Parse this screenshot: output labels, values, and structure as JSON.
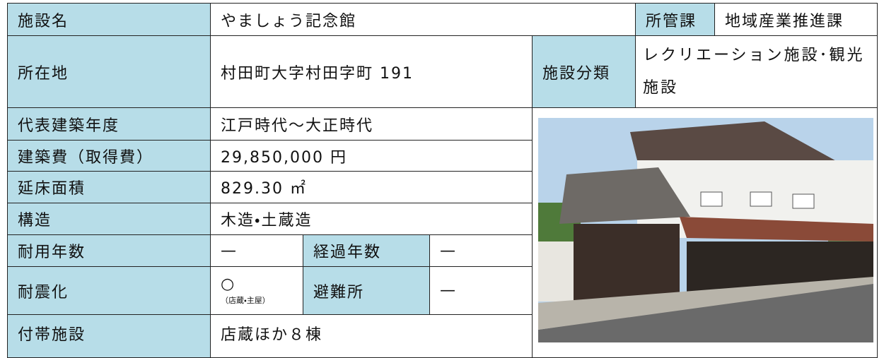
{
  "facility": {
    "name": {
      "label": "施設名",
      "value": "やましょう記念館"
    },
    "department": {
      "label": "所管課",
      "value": "地域産業推進課"
    },
    "location": {
      "label": "所在地",
      "value": "村田町大字村田字町 191"
    },
    "category": {
      "label": "施設分類",
      "value": "レクリエーション施設･観光施設"
    },
    "built_era": {
      "label": "代表建築年度",
      "value": "江戸時代～大正時代"
    },
    "construction_cost": {
      "label": "建築費（取得費）",
      "value": "29,850,000 円"
    },
    "floor_area": {
      "label": "延床面積",
      "value": "829.30 ㎡"
    },
    "structure": {
      "label": "構造",
      "value": "木造・土蔵造"
    },
    "useful_life": {
      "label": "耐用年数",
      "value": "—"
    },
    "elapsed_years": {
      "label": "経過年数",
      "value": "—"
    },
    "seismic": {
      "label": "耐震化",
      "value": "○",
      "note": "（店蔵・主屋）"
    },
    "evacuation": {
      "label": "避難所",
      "value": "—"
    },
    "annex": {
      "label": "付帯施設",
      "value": "店蔵ほか８棟"
    }
  }
}
